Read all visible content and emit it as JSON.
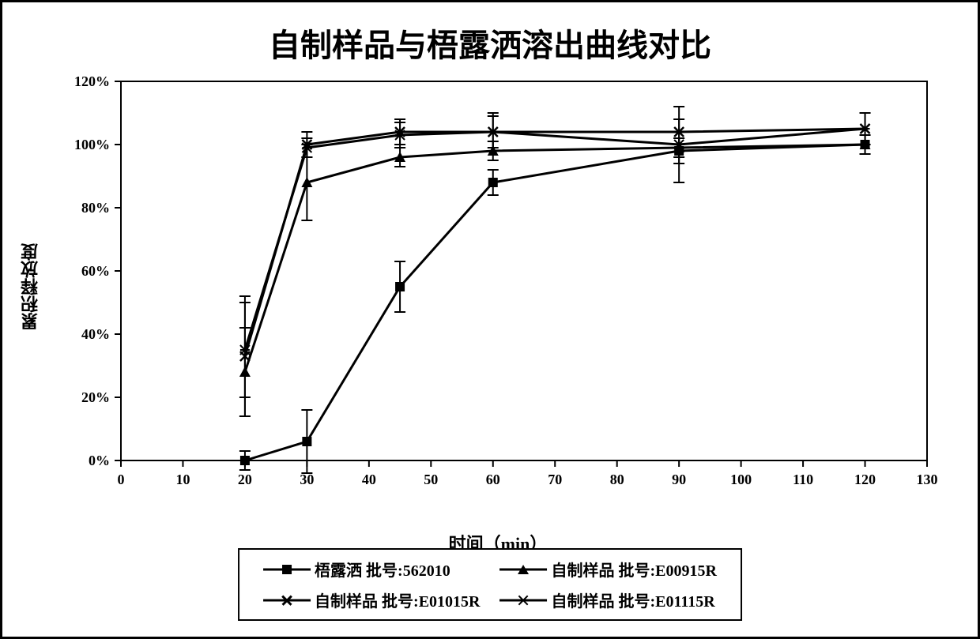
{
  "chart": {
    "type": "line",
    "title": "自制样品与梧露洒溶出曲线对比",
    "title_fontsize": 40,
    "x_axis": {
      "title": "时间（min）",
      "min": 0,
      "max": 130,
      "tick_step": 10,
      "ticks": [
        0,
        10,
        20,
        30,
        40,
        50,
        60,
        70,
        80,
        90,
        100,
        110,
        120,
        130
      ],
      "label_fontsize": 22
    },
    "y_axis": {
      "title": "累积释放度",
      "min": 0,
      "max": 120,
      "tick_step": 20,
      "ticks": [
        "0%",
        "20%",
        "40%",
        "60%",
        "80%",
        "100%",
        "120%"
      ],
      "tick_values": [
        0,
        20,
        40,
        60,
        80,
        100,
        120
      ],
      "label_fontsize": 22
    },
    "background_color": "#ffffff",
    "border_color": "#000000",
    "line_color": "#000000",
    "marker_outline": "#000000",
    "line_width": 3,
    "marker_size": 12,
    "error_cap_width": 14,
    "series": [
      {
        "name": "梧露洒 批号:562010",
        "marker": "square",
        "x": [
          20,
          30,
          45,
          60,
          90,
          120
        ],
        "y": [
          0,
          6,
          55,
          88,
          98,
          100
        ],
        "err": [
          3,
          10,
          8,
          4,
          4,
          3
        ]
      },
      {
        "name": "自制样品 批号:E00915R",
        "marker": "triangle",
        "x": [
          20,
          30,
          45,
          60,
          90,
          120
        ],
        "y": [
          28,
          88,
          96,
          98,
          99,
          100
        ],
        "err": [
          14,
          12,
          3,
          3,
          3,
          3
        ]
      },
      {
        "name": "自制样品 批号:E01015R",
        "marker": "x",
        "x": [
          20,
          30,
          45,
          60,
          90,
          120
        ],
        "y": [
          33,
          100,
          104,
          104,
          104,
          105
        ],
        "err": [
          19,
          4,
          4,
          6,
          4,
          5
        ]
      },
      {
        "name": "自制样品 批号:E01115R",
        "marker": "star",
        "x": [
          20,
          30,
          45,
          60,
          90,
          120
        ],
        "y": [
          35,
          99,
          103,
          104,
          100,
          105
        ],
        "err": [
          15,
          3,
          4,
          5,
          12,
          5
        ]
      }
    ],
    "legend": {
      "border_color": "#000000",
      "layout": "2x2",
      "fontsize": 20
    }
  }
}
